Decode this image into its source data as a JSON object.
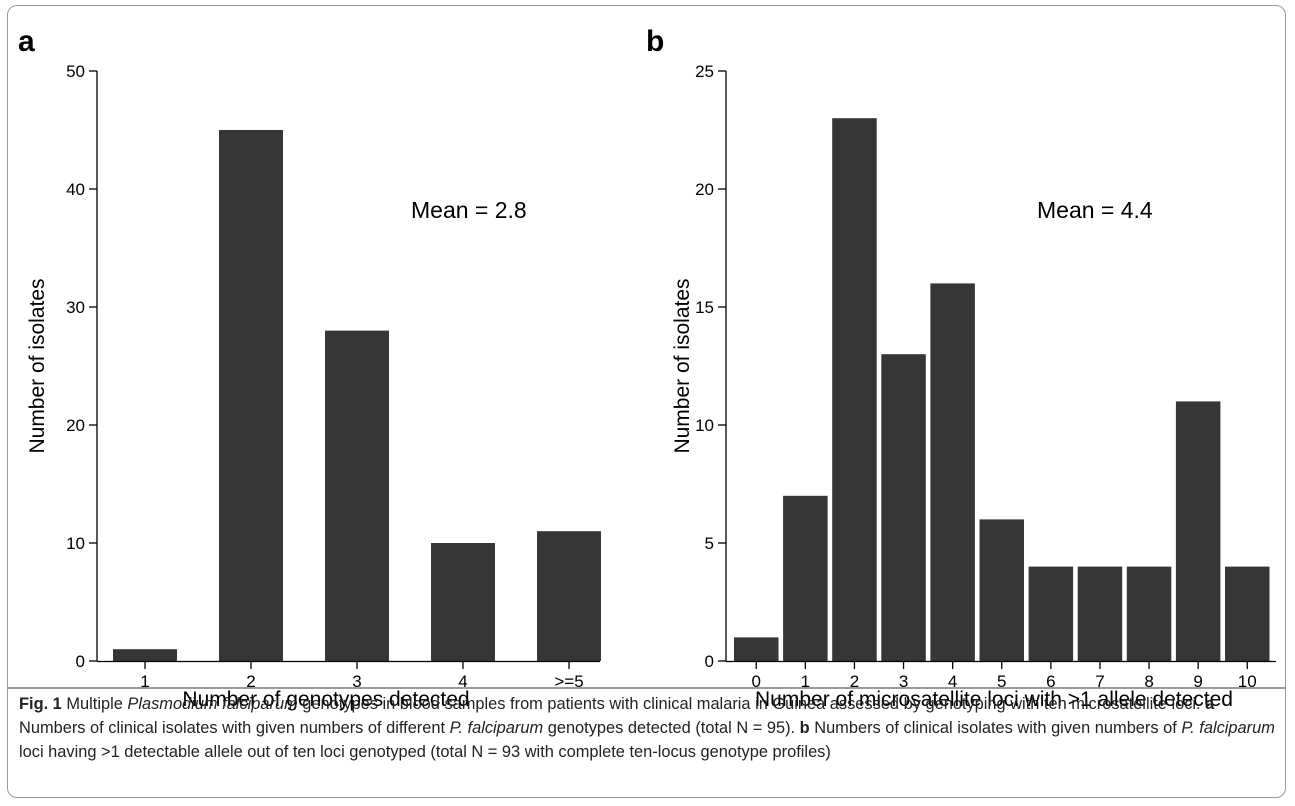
{
  "colors": {
    "bar": "#363636",
    "axis": "#000000",
    "frame": "#9a9a9a"
  },
  "chart_data": [
    {
      "type": "bar",
      "panel_label": "a",
      "categories": [
        "1",
        "2",
        "3",
        "4",
        ">=5"
      ],
      "values": [
        1,
        45,
        28,
        10,
        11
      ],
      "xlabel": "Number of genotypes detected",
      "ylabel": "Number of isolates",
      "yticks": [
        0,
        10,
        20,
        30,
        40,
        50
      ],
      "ylim": [
        0,
        50
      ],
      "annotation": "Mean = 2.8",
      "grid": false
    },
    {
      "type": "bar",
      "panel_label": "b",
      "categories": [
        "0",
        "1",
        "2",
        "3",
        "4",
        "5",
        "6",
        "7",
        "8",
        "9",
        "10"
      ],
      "values": [
        1,
        7,
        23,
        13,
        16,
        6,
        4,
        4,
        4,
        11,
        4
      ],
      "xlabel": "Number of microsatellite loci with >1 allele detected",
      "ylabel": "Number of isolates",
      "yticks": [
        0,
        5,
        10,
        15,
        20,
        25
      ],
      "ylim": [
        0,
        25
      ],
      "annotation": "Mean = 4.4",
      "grid": false
    }
  ],
  "caption": {
    "fig_label": "Fig. 1",
    "t1": " Multiple ",
    "i1": "Plasmodium falciparum",
    "t2": " genotypes in blood samples from patients with clinical malaria in Guinea assessed by genotyping with ten microsatellite loci. ",
    "b1": "a",
    "t3": " Numbers of clinical isolates with given numbers of different ",
    "i2": "P. falciparum",
    "t4": " genotypes detected (total N = 95). ",
    "b2": "b",
    "t5": " Numbers of clinical isolates with given numbers of ",
    "i3": "P. falciparum",
    "t6": " loci having >1 detectable allele out of ten loci genotyped (total N = 93 with complete ten-locus genotype profiles)"
  }
}
